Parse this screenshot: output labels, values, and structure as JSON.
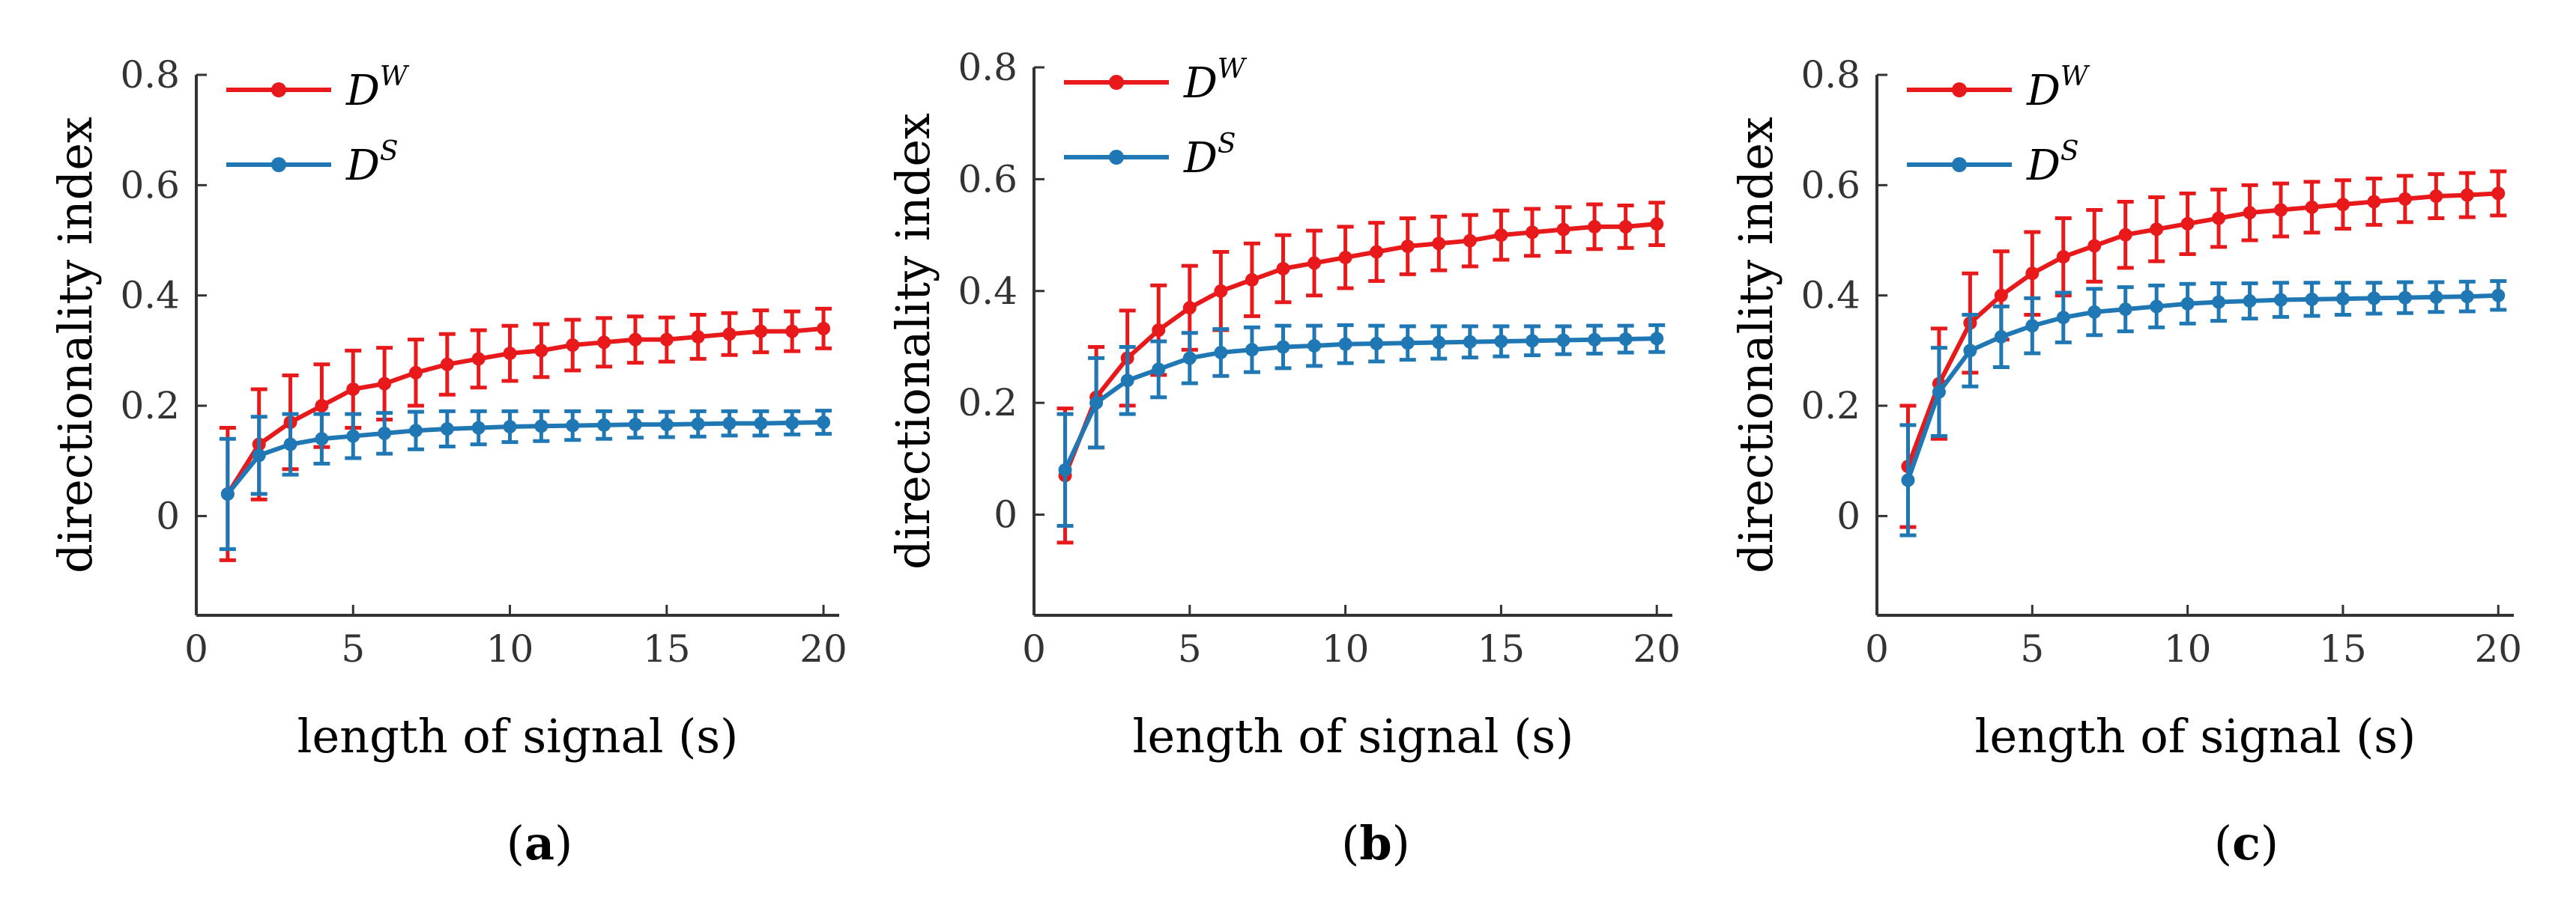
{
  "chart_data": [
    {
      "type": "line",
      "panel_label": "a",
      "xlabel": "length of signal (s)",
      "ylabel": "directionality index",
      "xlim": [
        0,
        20.5
      ],
      "ylim": [
        -0.18,
        0.8
      ],
      "xticks": [
        0,
        5,
        10,
        15,
        20
      ],
      "yticks": [
        0,
        0.2,
        0.4,
        0.6,
        0.8
      ],
      "ytick_labels": [
        "0",
        "0.2",
        "0.4",
        "0.6",
        "0.8"
      ],
      "x": [
        1,
        2,
        3,
        4,
        5,
        6,
        7,
        8,
        9,
        10,
        11,
        12,
        13,
        14,
        15,
        16,
        17,
        18,
        19,
        20
      ],
      "series": [
        {
          "name": "D",
          "sup": "W",
          "color": "#e8191b",
          "values": [
            0.04,
            0.13,
            0.17,
            0.2,
            0.23,
            0.24,
            0.26,
            0.275,
            0.285,
            0.295,
            0.3,
            0.31,
            0.315,
            0.32,
            0.32,
            0.325,
            0.33,
            0.335,
            0.335,
            0.34
          ],
          "errors": [
            0.12,
            0.1,
            0.085,
            0.075,
            0.07,
            0.065,
            0.06,
            0.055,
            0.052,
            0.05,
            0.048,
            0.046,
            0.044,
            0.042,
            0.04,
            0.04,
            0.038,
            0.038,
            0.036,
            0.036
          ]
        },
        {
          "name": "D",
          "sup": "S",
          "color": "#1f77b4",
          "values": [
            0.04,
            0.11,
            0.13,
            0.14,
            0.145,
            0.15,
            0.155,
            0.158,
            0.16,
            0.162,
            0.163,
            0.164,
            0.165,
            0.166,
            0.166,
            0.167,
            0.168,
            0.168,
            0.169,
            0.17
          ],
          "errors": [
            0.1,
            0.07,
            0.055,
            0.045,
            0.04,
            0.037,
            0.034,
            0.032,
            0.03,
            0.028,
            0.027,
            0.026,
            0.025,
            0.024,
            0.023,
            0.023,
            0.022,
            0.022,
            0.021,
            0.021
          ]
        }
      ]
    },
    {
      "type": "line",
      "panel_label": "b",
      "xlabel": "length of signal (s)",
      "ylabel": "directionality index",
      "xlim": [
        0,
        20.5
      ],
      "ylim": [
        -0.18,
        0.8
      ],
      "xticks": [
        0,
        5,
        10,
        15,
        20
      ],
      "yticks": [
        0,
        0.2,
        0.4,
        0.6,
        0.8
      ],
      "ytick_labels": [
        "0",
        "0.2",
        "0.4",
        "0.6",
        "0.8"
      ],
      "x": [
        1,
        2,
        3,
        4,
        5,
        6,
        7,
        8,
        9,
        10,
        11,
        12,
        13,
        14,
        15,
        16,
        17,
        18,
        19,
        20
      ],
      "series": [
        {
          "name": "D",
          "sup": "W",
          "color": "#e8191b",
          "values": [
            0.07,
            0.21,
            0.28,
            0.33,
            0.37,
            0.4,
            0.42,
            0.44,
            0.45,
            0.46,
            0.47,
            0.48,
            0.485,
            0.49,
            0.5,
            0.505,
            0.51,
            0.515,
            0.515,
            0.52
          ],
          "errors": [
            0.12,
            0.09,
            0.085,
            0.08,
            0.075,
            0.07,
            0.065,
            0.06,
            0.058,
            0.055,
            0.052,
            0.05,
            0.048,
            0.046,
            0.044,
            0.042,
            0.04,
            0.04,
            0.038,
            0.038
          ]
        },
        {
          "name": "D",
          "sup": "S",
          "color": "#1f77b4",
          "values": [
            0.08,
            0.2,
            0.24,
            0.26,
            0.28,
            0.29,
            0.295,
            0.3,
            0.302,
            0.305,
            0.306,
            0.307,
            0.308,
            0.309,
            0.31,
            0.311,
            0.312,
            0.313,
            0.314,
            0.315
          ],
          "errors": [
            0.1,
            0.08,
            0.06,
            0.05,
            0.045,
            0.042,
            0.04,
            0.038,
            0.036,
            0.034,
            0.032,
            0.03,
            0.029,
            0.028,
            0.027,
            0.026,
            0.025,
            0.025,
            0.024,
            0.024
          ]
        }
      ]
    },
    {
      "type": "line",
      "panel_label": "c",
      "xlabel": "length of signal (s)",
      "ylabel": "directionality index",
      "xlim": [
        0,
        20.5
      ],
      "ylim": [
        -0.18,
        0.8
      ],
      "xticks": [
        0,
        5,
        10,
        15,
        20
      ],
      "yticks": [
        0,
        0.2,
        0.4,
        0.6,
        0.8
      ],
      "ytick_labels": [
        "0",
        "0.2",
        "0.4",
        "0.6",
        "0.8"
      ],
      "x": [
        1,
        2,
        3,
        4,
        5,
        6,
        7,
        8,
        9,
        10,
        11,
        12,
        13,
        14,
        15,
        16,
        17,
        18,
        19,
        20
      ],
      "series": [
        {
          "name": "D",
          "sup": "W",
          "color": "#e8191b",
          "values": [
            0.09,
            0.24,
            0.35,
            0.4,
            0.44,
            0.47,
            0.49,
            0.51,
            0.52,
            0.53,
            0.54,
            0.55,
            0.555,
            0.56,
            0.565,
            0.57,
            0.575,
            0.58,
            0.582,
            0.585
          ],
          "errors": [
            0.11,
            0.1,
            0.09,
            0.08,
            0.075,
            0.07,
            0.065,
            0.06,
            0.058,
            0.055,
            0.052,
            0.05,
            0.048,
            0.046,
            0.044,
            0.042,
            0.042,
            0.04,
            0.04,
            0.04
          ]
        },
        {
          "name": "D",
          "sup": "S",
          "color": "#1f77b4",
          "values": [
            0.065,
            0.225,
            0.3,
            0.325,
            0.345,
            0.36,
            0.37,
            0.375,
            0.38,
            0.385,
            0.388,
            0.39,
            0.392,
            0.393,
            0.394,
            0.395,
            0.396,
            0.397,
            0.398,
            0.4
          ],
          "errors": [
            0.1,
            0.08,
            0.065,
            0.055,
            0.05,
            0.045,
            0.042,
            0.04,
            0.038,
            0.036,
            0.034,
            0.032,
            0.031,
            0.03,
            0.029,
            0.028,
            0.028,
            0.027,
            0.027,
            0.026
          ]
        }
      ]
    }
  ]
}
